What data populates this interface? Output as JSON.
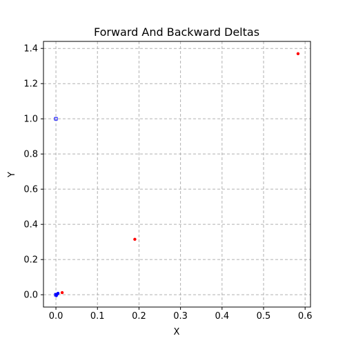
{
  "chart_data": {
    "type": "scatter",
    "title": "Forward And Backward Deltas",
    "xlabel": "X",
    "ylabel": "Y",
    "xlim": [
      -0.03,
      0.613
    ],
    "ylim": [
      -0.07,
      1.44
    ],
    "xticks": [
      0.0,
      0.1,
      0.2,
      0.3,
      0.4,
      0.5,
      0.6
    ],
    "xtick_labels": [
      "0.0",
      "0.1",
      "0.2",
      "0.3",
      "0.4",
      "0.5",
      "0.6"
    ],
    "yticks": [
      0.0,
      0.2,
      0.4,
      0.6,
      0.8,
      1.0,
      1.2,
      1.4
    ],
    "ytick_labels": [
      "0.0",
      "0.2",
      "0.4",
      "0.6",
      "0.8",
      "1.0",
      "1.2",
      "1.4"
    ],
    "grid": true,
    "series": [
      {
        "color": "#ff0000",
        "marker": "filled-circle",
        "points": [
          {
            "x": 0.0,
            "y": 0.0
          },
          {
            "x": 0.015,
            "y": 0.012
          },
          {
            "x": 0.19,
            "y": 0.315
          },
          {
            "x": 0.583,
            "y": 1.37
          }
        ]
      },
      {
        "color": "#0000ff",
        "marker": "filled-circle",
        "points": [
          {
            "x": 0.0,
            "y": 0.0
          },
          {
            "x": 0.001,
            "y": -0.005
          },
          {
            "x": 0.002,
            "y": 0.002
          },
          {
            "x": 0.004,
            "y": 0.005
          },
          {
            "x": 0.005,
            "y": 0.008
          }
        ]
      },
      {
        "color": "#0000ff",
        "marker": "hollow-square",
        "points": [
          {
            "x": 0.0,
            "y": 1.0
          },
          {
            "x": 0.0,
            "y": 0.0
          }
        ]
      }
    ]
  }
}
